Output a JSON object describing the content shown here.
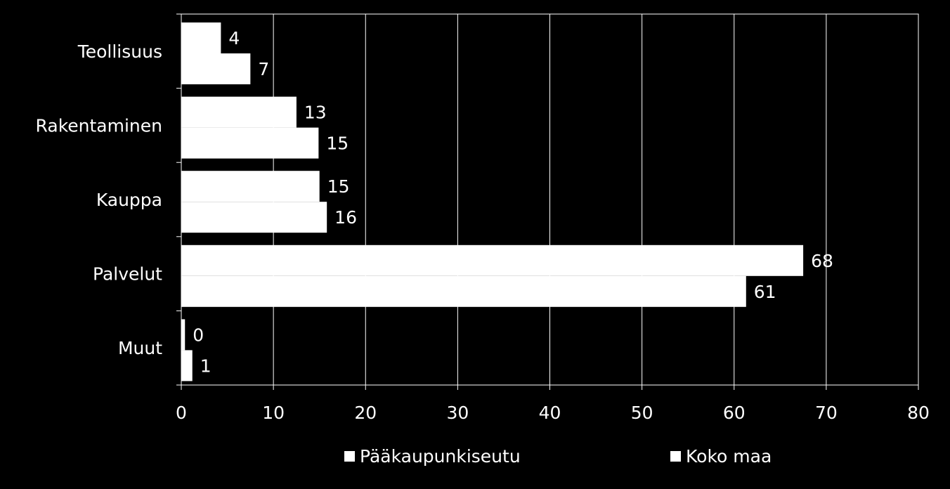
{
  "colors": {
    "background": "#000000",
    "bar": "#ffffff",
    "grid": "#ffffff",
    "text": "#ffffff"
  },
  "chart_data": {
    "type": "bar",
    "orientation": "horizontal",
    "categories": [
      "Teollisuus",
      "Rakentaminen",
      "Kauppa",
      "Palvelut",
      "Muut"
    ],
    "series": [
      {
        "name": "Pääkaupunkiseutu",
        "values": [
          4,
          13,
          15,
          68,
          0
        ],
        "labels": [
          "4",
          "13",
          "15",
          "68",
          "0"
        ]
      },
      {
        "name": "Koko maa",
        "values": [
          7,
          15,
          16,
          61,
          1
        ],
        "labels": [
          "7",
          "15",
          "16",
          "61",
          "1"
        ]
      }
    ],
    "exact_values": [
      [
        4.3,
        12.5,
        15.0,
        67.5,
        0.4
      ],
      [
        7.5,
        14.9,
        15.8,
        61.3,
        1.2
      ]
    ],
    "xlim": [
      0,
      80
    ],
    "xticks": [
      0,
      10,
      20,
      30,
      40,
      50,
      60,
      70,
      80
    ],
    "tick_labels": [
      "0",
      "10",
      "20",
      "30",
      "40",
      "50",
      "60",
      "70",
      "80"
    ],
    "grid": true,
    "legend_position": "bottom",
    "title": "",
    "xlabel": "",
    "ylabel": ""
  }
}
